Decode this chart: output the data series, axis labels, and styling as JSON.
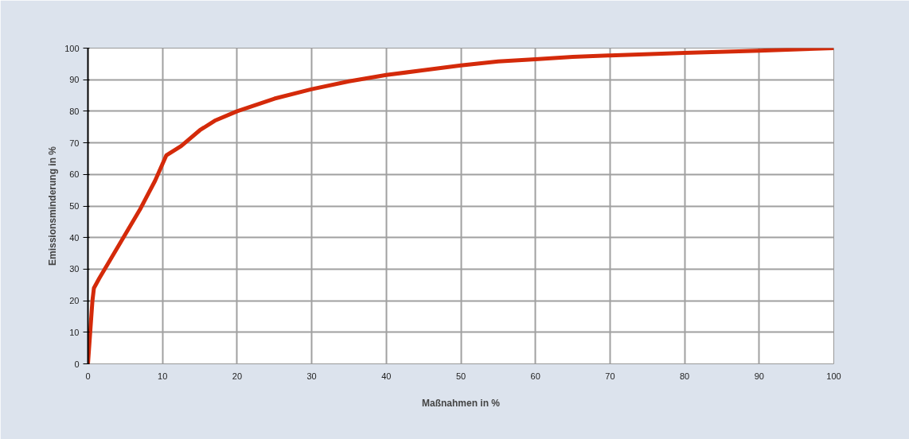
{
  "chart_data": {
    "type": "line",
    "xlabel": "Maßnahmen in %",
    "ylabel": "Emissionsminderung in %",
    "x": [
      0,
      0.3,
      0.6,
      0.8,
      1.5,
      3,
      5,
      7,
      9,
      10.5,
      12.5,
      15,
      17,
      20,
      25,
      30,
      35,
      40,
      45,
      50,
      55,
      60,
      65,
      70,
      80,
      90,
      100
    ],
    "series": [
      {
        "color": "#d42a0a",
        "values": [
          0,
          10,
          20,
          24,
          27,
          33,
          41,
          49,
          58,
          66,
          69,
          74,
          77,
          80,
          84,
          87,
          89.5,
          91.5,
          93,
          94.5,
          95.8,
          96.5,
          97.2,
          97.7,
          98.5,
          99.2,
          100
        ]
      }
    ],
    "xlim": [
      0,
      100
    ],
    "ylim": [
      0,
      100
    ],
    "xticks": [
      0,
      10,
      20,
      30,
      40,
      50,
      60,
      70,
      80,
      90,
      100
    ],
    "yticks": [
      0,
      10,
      20,
      30,
      40,
      50,
      60,
      70,
      80,
      90,
      100
    ],
    "grid": true,
    "marker": "none",
    "line_style": "solid"
  }
}
